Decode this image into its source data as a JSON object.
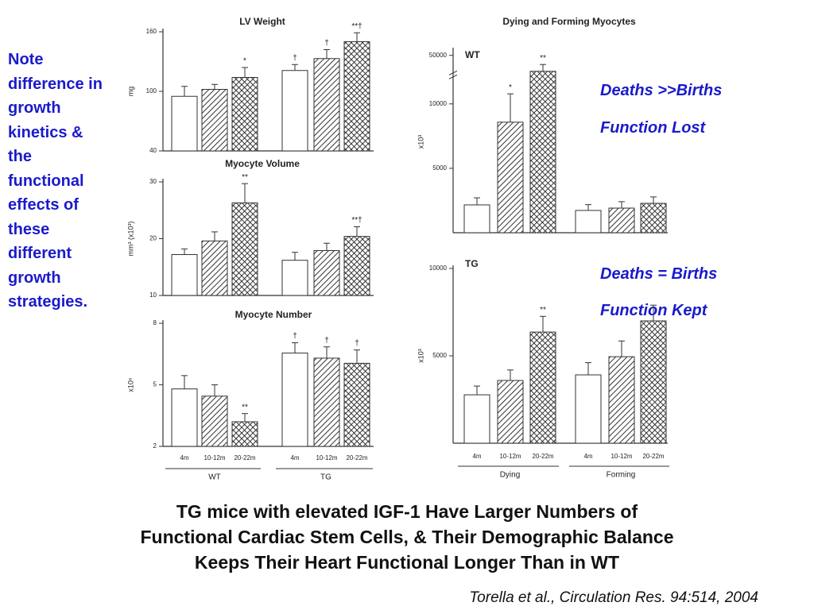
{
  "note": "Note difference in growth kinetics & the functional effects of these different growth strategies.",
  "annotations": [
    "Deaths >>Births",
    "Function Lost",
    "Deaths = Births",
    "Function Kept"
  ],
  "caption": [
    "TG mice with elevated IGF-1 Have Larger Numbers of",
    "Functional Cardiac Stem Cells, & Their Demographic Balance",
    "Keeps Their Heart Functional Longer Than in WT"
  ],
  "citation": "Torella et al., Circulation Res. 94:514, 2004",
  "chart_data": [
    {
      "type": "bar",
      "title": "LV Weight",
      "ylabel": "mg",
      "ylim": [
        40,
        160
      ],
      "yticks": [
        40,
        100,
        160
      ],
      "series": [
        {
          "pattern": "open",
          "values": [
            95,
            121
          ],
          "errors": [
            10,
            6
          ],
          "symbols": [
            null,
            "†"
          ]
        },
        {
          "pattern": "hatch",
          "values": [
            102,
            133
          ],
          "errors": [
            5,
            9
          ],
          "symbols": [
            null,
            "†"
          ]
        },
        {
          "pattern": "cross",
          "values": [
            114,
            150
          ],
          "errors": [
            10,
            9
          ],
          "symbols": [
            "*",
            "**†"
          ]
        }
      ]
    },
    {
      "type": "bar",
      "title": "Myocyte Volume",
      "ylabel": "mm³ (x10³)",
      "ylim": [
        10,
        30
      ],
      "yticks": [
        10,
        20,
        30
      ],
      "series": [
        {
          "pattern": "open",
          "values": [
            17.2,
            16.2
          ],
          "errors": [
            1.0,
            1.4
          ],
          "symbols": [
            null,
            null
          ]
        },
        {
          "pattern": "hatch",
          "values": [
            19.6,
            17.9
          ],
          "errors": [
            1.6,
            1.3
          ],
          "symbols": [
            null,
            null
          ]
        },
        {
          "pattern": "cross",
          "values": [
            26.3,
            20.4
          ],
          "errors": [
            3.4,
            1.7
          ],
          "symbols": [
            "**",
            "**†"
          ]
        }
      ]
    },
    {
      "type": "bar",
      "title": "Myocyte Number",
      "ylabel": "x10⁶",
      "ylim": [
        2,
        8
      ],
      "yticks": [
        2,
        5,
        8
      ],
      "categories": [
        "WT",
        "TG"
      ],
      "series": [
        {
          "name": "4m",
          "pattern": "open",
          "values": [
            4.8,
            6.55
          ],
          "errors": [
            0.65,
            0.5
          ],
          "symbols": [
            null,
            "†"
          ]
        },
        {
          "name": "10-12m",
          "pattern": "hatch",
          "values": [
            4.45,
            6.3
          ],
          "errors": [
            0.55,
            0.55
          ],
          "symbols": [
            null,
            "†"
          ]
        },
        {
          "name": "20-22m",
          "pattern": "cross",
          "values": [
            3.2,
            6.05
          ],
          "errors": [
            0.4,
            0.65
          ],
          "symbols": [
            "**",
            "†"
          ]
        }
      ]
    },
    {
      "type": "bar",
      "title": "Dying and Forming Myocytes",
      "panel": "WT",
      "ylabel": "x10³",
      "ylim": [
        0,
        52000
      ],
      "axis_break": [
        12000,
        40000
      ],
      "yticks": [
        5000,
        10000,
        50000
      ],
      "series": [
        {
          "pattern": "open",
          "values": [
            2160,
            1730
          ],
          "errors": [
            550,
            450
          ],
          "symbols": [
            null,
            null
          ]
        },
        {
          "pattern": "hatch",
          "values": [
            8580,
            1910
          ],
          "errors": [
            2200,
            500
          ],
          "symbols": [
            "*",
            null
          ]
        },
        {
          "pattern": "cross",
          "values": [
            43000,
            2280
          ],
          "errors": [
            3000,
            500
          ],
          "symbols": [
            "**",
            null
          ]
        }
      ]
    },
    {
      "type": "bar",
      "panel": "TG",
      "ylabel": "x10³",
      "ylim": [
        0,
        10000
      ],
      "yticks": [
        5000,
        10000
      ],
      "categories": [
        "Dying",
        "Forming"
      ],
      "series": [
        {
          "name": "4m",
          "pattern": "open",
          "values": [
            2770,
            3910
          ],
          "errors": [
            500,
            700
          ],
          "symbols": [
            null,
            null
          ]
        },
        {
          "name": "10-12m",
          "pattern": "hatch",
          "values": [
            3590,
            4950
          ],
          "errors": [
            600,
            900
          ],
          "symbols": [
            null,
            null
          ]
        },
        {
          "name": "20-22m",
          "pattern": "cross",
          "values": [
            6360,
            7000
          ],
          "errors": [
            900,
            900
          ],
          "symbols": [
            "**",
            null
          ]
        }
      ]
    }
  ]
}
